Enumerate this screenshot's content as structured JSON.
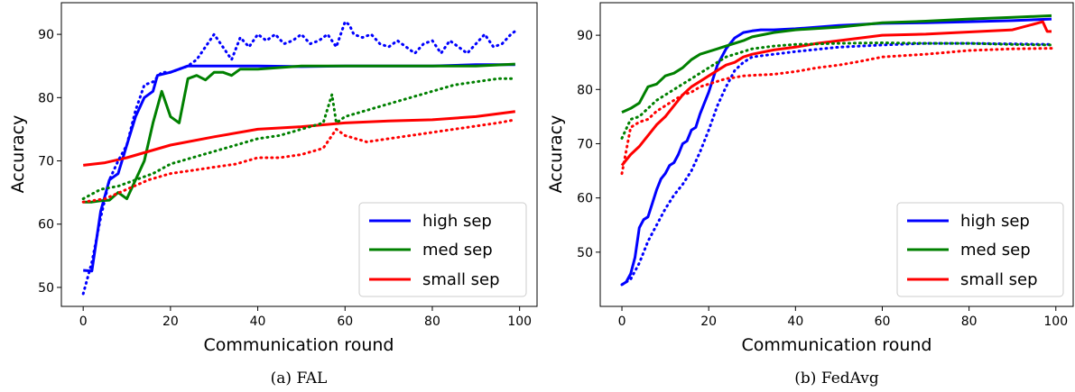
{
  "chart_data": [
    {
      "type": "line",
      "caption": "(a) FAL",
      "xlabel": "Communication round",
      "ylabel": "Accuracy",
      "xlim": [
        -5,
        104
      ],
      "ylim": [
        47,
        95
      ],
      "xticks": [
        0,
        20,
        40,
        60,
        80,
        100
      ],
      "yticks": [
        50,
        60,
        70,
        80,
        90
      ],
      "legend_position": "bottom-right",
      "legend": [
        "high sep",
        "med sep",
        "small sep"
      ],
      "series": [
        {
          "name": "high sep",
          "style": "solid",
          "color": "#0000ff",
          "x": [
            0,
            2,
            4,
            6,
            8,
            10,
            12,
            14,
            16,
            17,
            20,
            24,
            30,
            40,
            50,
            60,
            70,
            80,
            90,
            99
          ],
          "y": [
            52.7,
            52.6,
            62,
            67,
            68,
            72.5,
            77,
            80,
            81,
            83.5,
            84,
            85,
            85,
            85,
            84.9,
            85,
            85,
            85,
            85.2,
            85.2
          ]
        },
        {
          "name": "med sep",
          "style": "solid",
          "color": "#008000",
          "x": [
            0,
            2,
            4,
            6,
            8,
            10,
            12,
            14,
            16,
            18,
            20,
            22,
            24,
            26,
            28,
            30,
            32,
            34,
            36,
            40,
            50,
            60,
            70,
            80,
            90,
            99
          ],
          "y": [
            63.5,
            63.5,
            63.7,
            63.8,
            65,
            64,
            67,
            70,
            76,
            81,
            77,
            76,
            83,
            83.5,
            82.8,
            84,
            84,
            83.5,
            84.5,
            84.5,
            85,
            85,
            85,
            85,
            85,
            85.3
          ]
        },
        {
          "name": "small sep",
          "style": "solid",
          "color": "#ff0000",
          "x": [
            0,
            5,
            10,
            15,
            20,
            30,
            40,
            50,
            60,
            70,
            80,
            90,
            99
          ],
          "y": [
            69.3,
            69.7,
            70.5,
            71.5,
            72.5,
            73.8,
            75,
            75.4,
            76,
            76.3,
            76.5,
            77,
            77.8
          ]
        },
        {
          "name": "high sep",
          "style": "dotted",
          "color": "#0000ff",
          "x": [
            0,
            2,
            4,
            6,
            8,
            10,
            12,
            14,
            16,
            18,
            20,
            22,
            24,
            26,
            28,
            30,
            32,
            34,
            36,
            38,
            40,
            42,
            44,
            46,
            48,
            50,
            52,
            54,
            56,
            58,
            60,
            61,
            62,
            64,
            66,
            68,
            70,
            72,
            74,
            76,
            78,
            80,
            82,
            84,
            86,
            88,
            90,
            92,
            94,
            96,
            98,
            99
          ],
          "y": [
            49,
            54,
            61,
            67,
            70,
            72.5,
            78,
            82,
            82.5,
            84,
            84,
            84.5,
            85,
            86,
            88,
            90,
            88,
            86,
            89.5,
            88,
            90,
            89,
            90,
            88.5,
            89,
            90,
            88.5,
            89,
            90,
            88,
            92,
            91.5,
            90,
            89.5,
            90,
            88.5,
            88,
            89,
            88,
            87,
            88.5,
            89,
            87,
            89,
            88,
            87,
            88.5,
            90,
            88,
            88.5,
            90,
            90.5
          ]
        },
        {
          "name": "med sep",
          "style": "dotted",
          "color": "#008000",
          "x": [
            0,
            4,
            8,
            12,
            16,
            20,
            25,
            30,
            35,
            40,
            45,
            50,
            55,
            57,
            58,
            60,
            65,
            70,
            75,
            80,
            85,
            90,
            95,
            99
          ],
          "y": [
            64,
            65.5,
            66,
            67,
            68,
            69.5,
            70.5,
            71.5,
            72.5,
            73.5,
            74,
            75,
            76,
            80.5,
            76,
            77,
            78,
            79,
            80,
            81,
            82,
            82.5,
            83,
            83
          ]
        },
        {
          "name": "small sep",
          "style": "dotted",
          "color": "#ff0000",
          "x": [
            0,
            5,
            10,
            15,
            20,
            25,
            30,
            35,
            40,
            45,
            50,
            55,
            58,
            60,
            65,
            70,
            75,
            80,
            85,
            90,
            95,
            99
          ],
          "y": [
            63.5,
            64,
            65.5,
            67,
            68,
            68.5,
            69,
            69.5,
            70.5,
            70.5,
            71,
            72,
            75,
            74,
            73,
            73.5,
            74,
            74.5,
            75,
            75.5,
            76,
            76.5
          ]
        }
      ]
    },
    {
      "type": "line",
      "caption": "(b) FedAvg",
      "xlabel": "Communication round",
      "ylabel": "Accuracy",
      "xlim": [
        -5,
        104
      ],
      "ylim": [
        40,
        96
      ],
      "xticks": [
        0,
        20,
        40,
        60,
        80,
        100
      ],
      "yticks": [
        50,
        60,
        70,
        80,
        90
      ],
      "legend_position": "bottom-right",
      "legend": [
        "high sep",
        "med sep",
        "small sep"
      ],
      "series": [
        {
          "name": "high sep",
          "style": "solid",
          "color": "#0000ff",
          "x": [
            0,
            1,
            2,
            3,
            4,
            5,
            6,
            7,
            8,
            9,
            10,
            11,
            12,
            13,
            14,
            15,
            16,
            17,
            18,
            19,
            20,
            21,
            22,
            23,
            24,
            25,
            26,
            27,
            28,
            30,
            32,
            35,
            40,
            45,
            50,
            55,
            60,
            70,
            80,
            90,
            99
          ],
          "y": [
            44,
            44.5,
            46,
            49,
            54.5,
            56,
            56.5,
            59,
            61.5,
            63.5,
            64.5,
            66,
            66.5,
            68,
            70,
            70.5,
            72.5,
            73,
            75.5,
            77.5,
            79.5,
            82,
            84.5,
            86,
            87.5,
            88.5,
            89.5,
            90,
            90.5,
            90.8,
            91,
            91,
            91.2,
            91.5,
            91.8,
            92,
            92.2,
            92.3,
            92.5,
            92.7,
            93
          ]
        },
        {
          "name": "med sep",
          "style": "solid",
          "color": "#008000",
          "x": [
            0,
            2,
            4,
            6,
            8,
            10,
            12,
            14,
            16,
            18,
            20,
            22,
            24,
            26,
            28,
            30,
            35,
            40,
            50,
            60,
            70,
            80,
            90,
            99
          ],
          "y": [
            75.8,
            76.5,
            77.5,
            80.5,
            81,
            82.5,
            83,
            84,
            85.5,
            86.5,
            87,
            87.5,
            88,
            88.5,
            89,
            89.7,
            90.5,
            91,
            91.5,
            92.3,
            92.6,
            93,
            93.3,
            93.6
          ]
        },
        {
          "name": "small sep",
          "style": "solid",
          "color": "#ff0000",
          "x": [
            0,
            2,
            4,
            6,
            8,
            10,
            12,
            14,
            16,
            18,
            20,
            22,
            24,
            26,
            28,
            30,
            35,
            40,
            45,
            50,
            60,
            70,
            80,
            90,
            97,
            98,
            99
          ],
          "y": [
            66,
            68,
            69.5,
            71.5,
            73.5,
            75,
            77,
            79,
            80.5,
            81.5,
            82.5,
            83.5,
            84.5,
            85,
            86,
            86.5,
            87.3,
            87.8,
            88.5,
            89,
            90,
            90.2,
            90.6,
            91,
            92.5,
            90.7,
            90.7
          ]
        },
        {
          "name": "high sep",
          "style": "dotted",
          "color": "#0000ff",
          "x": [
            0,
            2,
            4,
            6,
            8,
            10,
            12,
            14,
            16,
            18,
            20,
            22,
            24,
            26,
            28,
            30,
            35,
            40,
            50,
            60,
            70,
            80,
            90,
            99
          ],
          "y": [
            44,
            45,
            48,
            52,
            55,
            58,
            60.5,
            62.5,
            65,
            68.5,
            72.5,
            77,
            80.5,
            83.5,
            85,
            86,
            86.5,
            87,
            87.8,
            88.2,
            88.5,
            88.5,
            88.4,
            88.3
          ]
        },
        {
          "name": "med sep",
          "style": "dotted",
          "color": "#008000",
          "x": [
            0,
            2,
            4,
            6,
            8,
            10,
            12,
            14,
            16,
            18,
            20,
            22,
            24,
            26,
            28,
            30,
            35,
            40,
            50,
            60,
            70,
            80,
            90,
            99
          ],
          "y": [
            71,
            74.5,
            75,
            76.5,
            78,
            79,
            80,
            81,
            82,
            83,
            84,
            85,
            86,
            86.5,
            87,
            87.5,
            88,
            88.3,
            88.5,
            88.6,
            88.5,
            88.5,
            88.3,
            88.2
          ]
        },
        {
          "name": "small sep",
          "style": "dotted",
          "color": "#ff0000",
          "x": [
            0,
            2,
            4,
            6,
            8,
            10,
            12,
            14,
            16,
            18,
            20,
            22,
            24,
            26,
            28,
            30,
            35,
            40,
            45,
            50,
            55,
            60,
            70,
            80,
            90,
            99
          ],
          "y": [
            64.5,
            73,
            74,
            74.5,
            76,
            77,
            78,
            79,
            79.5,
            80.5,
            81,
            81.5,
            82,
            82.2,
            82.5,
            82.6,
            82.8,
            83.3,
            84,
            84.5,
            85.2,
            86,
            86.5,
            87.2,
            87.5,
            87.6
          ]
        }
      ]
    }
  ]
}
